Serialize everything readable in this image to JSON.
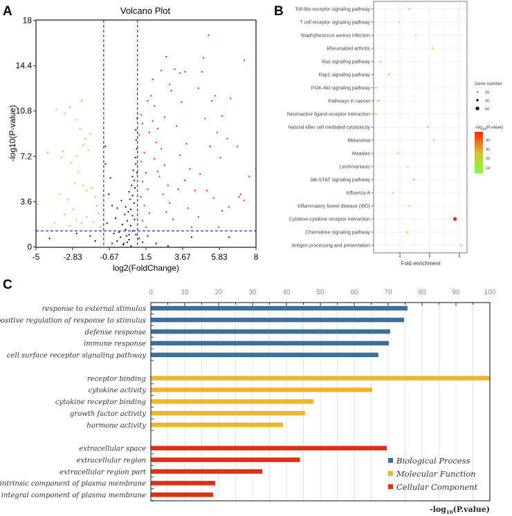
{
  "chart_data": [
    {
      "panel": "A",
      "type": "scatter",
      "title": "Volcano Plot",
      "xlabel": "log2(FoldChange)",
      "ylabel": "-log10(P-value)",
      "xlim": [
        -5,
        8
      ],
      "ylim": [
        0,
        18
      ],
      "xticks": [
        "-5",
        "-2.83",
        "-0.67",
        "1.5",
        "3.67",
        "5.83",
        "8"
      ],
      "yticks": [
        "0",
        "3.6",
        "7.2",
        "10.8",
        "14.4",
        "18"
      ],
      "thresholds": {
        "fc_low": -1,
        "fc_high": 1,
        "p": 1.3
      },
      "colors": {
        "up": "#e8262a",
        "down": "#7ee83a",
        "ns": "#111111",
        "threshold": "#1f2fff"
      },
      "series": [
        {
          "name": "up",
          "points": [
            [
              1.2,
              10.5
            ],
            [
              1.3,
              9.8
            ],
            [
              1.1,
              8.9
            ],
            [
              1.4,
              7.5
            ],
            [
              1.2,
              6.8
            ],
            [
              1.5,
              5.9
            ],
            [
              1.3,
              5.2
            ],
            [
              1.6,
              4.6
            ],
            [
              1.2,
              4.0
            ],
            [
              1.4,
              3.3
            ],
            [
              1.7,
              2.7
            ],
            [
              1.3,
              2.1
            ],
            [
              1.5,
              1.6
            ],
            [
              1.8,
              12.0
            ],
            [
              2.0,
              11.2
            ],
            [
              1.9,
              10.0
            ],
            [
              2.2,
              9.4
            ],
            [
              2.1,
              8.3
            ],
            [
              2.4,
              7.8
            ],
            [
              2.0,
              7.0
            ],
            [
              2.6,
              6.5
            ],
            [
              2.3,
              5.6
            ],
            [
              2.8,
              4.9
            ],
            [
              2.5,
              4.2
            ],
            [
              2.9,
              3.5
            ],
            [
              2.7,
              2.8
            ],
            [
              3.1,
              2.2
            ],
            [
              2.4,
              14.0
            ],
            [
              2.7,
              15.1
            ],
            [
              3.2,
              14.1
            ],
            [
              3.5,
              13.8
            ],
            [
              3.0,
              12.4
            ],
            [
              3.6,
              11.5
            ],
            [
              3.3,
              9.6
            ],
            [
              3.9,
              8.2
            ],
            [
              3.5,
              7.3
            ],
            [
              4.1,
              6.2
            ],
            [
              3.8,
              5.3
            ],
            [
              4.4,
              4.5
            ],
            [
              4.0,
              3.1
            ],
            [
              4.6,
              2.4
            ],
            [
              4.2,
              1.6
            ],
            [
              4.9,
              15.0
            ],
            [
              5.2,
              16.8
            ],
            [
              4.8,
              13.9
            ],
            [
              5.4,
              11.6
            ],
            [
              5.0,
              10.2
            ],
            [
              5.7,
              9.1
            ],
            [
              5.3,
              8.0
            ],
            [
              5.9,
              7.1
            ],
            [
              5.5,
              3.9
            ],
            [
              6.0,
              2.9
            ],
            [
              6.4,
              3.2
            ],
            [
              5.8,
              1.6
            ],
            [
              6.3,
              8.6
            ],
            [
              6.9,
              8.0
            ],
            [
              7.1,
              4.2
            ],
            [
              7.3,
              3.7
            ],
            [
              7.0,
              4.0
            ],
            [
              7.3,
              14.8
            ],
            [
              7.6,
              5.6
            ],
            [
              8.0,
              6.2
            ],
            [
              6.0,
              10.4
            ],
            [
              5.6,
              12.0
            ],
            [
              6.5,
              11.8
            ],
            [
              4.6,
              12.6
            ],
            [
              3.8,
              13.9
            ],
            [
              2.9,
              12.9
            ],
            [
              1.9,
              13.3
            ],
            [
              2.2,
              6.0
            ],
            [
              1.6,
              11.6
            ],
            [
              1.7,
              9.1
            ],
            [
              2.6,
              10.3
            ],
            [
              3.4,
              4.6
            ],
            [
              4.7,
              5.8
            ],
            [
              5.1,
              4.5
            ]
          ]
        },
        {
          "name": "down",
          "points": [
            [
              -4.9,
              3.4
            ],
            [
              -4.3,
              7.5
            ],
            [
              -3.9,
              1.9
            ],
            [
              -3.8,
              10.9
            ],
            [
              -3.6,
              4.2
            ],
            [
              -3.4,
              7.6
            ],
            [
              -3.5,
              7.1
            ],
            [
              -3.3,
              10.6
            ],
            [
              -3.3,
              2.6
            ],
            [
              -3.1,
              3.8
            ],
            [
              -3.0,
              11.1
            ],
            [
              -2.9,
              6.7
            ],
            [
              -2.8,
              3.0
            ],
            [
              -2.6,
              10.1
            ],
            [
              -2.6,
              7.2
            ],
            [
              -2.5,
              6.0
            ],
            [
              -2.4,
              9.4
            ],
            [
              -2.3,
              11.6
            ],
            [
              -2.2,
              8.1
            ],
            [
              -2.1,
              8.6
            ],
            [
              -2.0,
              4.5
            ],
            [
              -1.9,
              7.7
            ],
            [
              -1.8,
              9.0
            ],
            [
              -2.6,
              2.2
            ],
            [
              -2.3,
              1.9
            ],
            [
              -2.0,
              2.4
            ],
            [
              -1.6,
              2.0
            ],
            [
              -1.5,
              4.0
            ],
            [
              -1.4,
              3.3
            ],
            [
              -1.3,
              2.7
            ],
            [
              -1.2,
              1.6
            ],
            [
              -2.7,
              5.1
            ],
            [
              -1.7,
              4.7
            ],
            [
              -3.0,
              1.7
            ],
            [
              -2.2,
              4.9
            ]
          ]
        },
        {
          "name": "not significant",
          "points": [
            [
              -0.9,
              8.0
            ],
            [
              -0.9,
              6.6
            ],
            [
              -0.6,
              5.5
            ],
            [
              -0.7,
              4.2
            ],
            [
              -0.5,
              3.3
            ],
            [
              -0.3,
              2.3
            ],
            [
              -0.8,
              1.9
            ],
            [
              -0.4,
              1.1
            ],
            [
              -0.2,
              0.5
            ],
            [
              0,
              0.8
            ],
            [
              0.2,
              0.3
            ],
            [
              0.3,
              1.4
            ],
            [
              0.4,
              2.1
            ],
            [
              0.5,
              0.6
            ],
            [
              0.6,
              3.0
            ],
            [
              0.7,
              4.1
            ],
            [
              0.8,
              5.3
            ],
            [
              0.9,
              6.6
            ],
            [
              0.95,
              7.8
            ],
            [
              0.9,
              9.3
            ],
            [
              0.98,
              10.2
            ],
            [
              0.7,
              2.5
            ],
            [
              0.8,
              3.5
            ],
            [
              0.6,
              1.7
            ],
            [
              0.5,
              1.0
            ],
            [
              0.4,
              0.4
            ],
            [
              0.1,
              1.8
            ],
            [
              -0.1,
              1.2
            ],
            [
              0.85,
              4.7
            ],
            [
              0.75,
              6.1
            ],
            [
              0.65,
              4.9
            ],
            [
              0.55,
              3.8
            ],
            [
              0.45,
              2.8
            ],
            [
              0.35,
              0.9
            ],
            [
              0.25,
              2.6
            ],
            [
              0.15,
              0.2
            ],
            [
              -0.5,
              0.3
            ],
            [
              1.1,
              0.7
            ],
            [
              1.3,
              0.4
            ],
            [
              1.6,
              0.9
            ],
            [
              2.1,
              0.3
            ],
            [
              2.8,
              0.1
            ],
            [
              4.2,
              0.8
            ],
            [
              6.4,
              0.8
            ],
            [
              -1.5,
              0.5
            ],
            [
              -2.6,
              1.1
            ],
            [
              -4.2,
              0.7
            ],
            [
              -0.2,
              3.1
            ],
            [
              0.05,
              3.7
            ],
            [
              0.92,
              8.5
            ],
            [
              0.88,
              7.1
            ],
            [
              0.7,
              5.6
            ],
            [
              0.3,
              3.2
            ],
            [
              0.5,
              4.4
            ],
            [
              0.96,
              5.9
            ],
            [
              0.82,
              2.2
            ],
            [
              0.62,
              0.1
            ],
            [
              0.72,
              1.3
            ],
            [
              0.9,
              1.0
            ],
            [
              -1.8,
              0.9
            ]
          ]
        }
      ]
    },
    {
      "panel": "B",
      "type": "scatter",
      "xlabel": "Fold enrichment",
      "xlim": [
        2.2,
        8.4
      ],
      "xticks": [
        "4",
        "6",
        "8"
      ],
      "categories": [
        "Toll-like receptor signaling pathway",
        "T cell receptor signaling pathway",
        "Staphylococcus aureus infection",
        "Rheumatoid arthritis",
        "Ras signaling pathway",
        "Rap1 signaling pathway",
        "PI3K-Akt signaling pathway",
        "Pathways in cancer",
        "Neuroactive ligand-receptor interaction",
        "Natural killer cell mediated cytotoxicity",
        "Melanoma",
        "Measles",
        "Leishmaniasis",
        "Jak-STAT signaling pathway",
        "Influenza A",
        "Inflammatory bowel disease (IBD)",
        "Cytokine-cytokine receptor interaction",
        "Chemokine signaling pathway",
        "Antigen processing and presentation"
      ],
      "fold_enrichment": [
        4.65,
        3.95,
        5.07,
        6.19,
        2.7,
        3.26,
        2.4,
        2.56,
        2.4,
        5.86,
        6.28,
        3.88,
        4.53,
        4.93,
        3.51,
        4.65,
        7.7,
        4.5,
        8.14
      ],
      "gene_number": [
        14,
        12,
        8,
        14,
        18,
        16,
        20,
        24,
        16,
        16,
        12,
        14,
        10,
        16,
        14,
        10,
        60,
        20,
        14
      ],
      "neg_log10_p": [
        6,
        5,
        4,
        6,
        6,
        6,
        8,
        8,
        6,
        7,
        5,
        5,
        4,
        6,
        5,
        4,
        46,
        7,
        6
      ],
      "size_legend": {
        "title": "Gene number",
        "values": [
          "20",
          "40",
          "60"
        ]
      },
      "color_legend": {
        "title_prefix": "-log",
        "title_sub": "10",
        "title_suffix": "(P.value)",
        "ticks": [
          "40",
          "30",
          "20",
          "10"
        ],
        "range": [
          3,
          48
        ],
        "low_color": "#80ff40",
        "high_color": "#ff1a1a"
      }
    },
    {
      "panel": "C",
      "type": "bar",
      "orientation": "horizontal",
      "xlabel_prefix": "-log",
      "xlabel_sub": "10",
      "xlabel_suffix": "(P.value)",
      "xlim": [
        0,
        100
      ],
      "xticks": [
        "0",
        "10",
        "20",
        "30",
        "40",
        "50",
        "60",
        "70",
        "80",
        "90",
        "100"
      ],
      "groups": [
        {
          "name": "Biological Process",
          "color": "#3d6f9e",
          "categories": [
            "response to external stimulus",
            "positive regulation of response to stimulus",
            "defense response",
            "immune response",
            "cell surface receptor signaling pathway"
          ],
          "values": [
            75.7,
            74.7,
            70.6,
            70.2,
            67.1
          ]
        },
        {
          "name": "Molecular Function",
          "color": "#efb52d",
          "categories": [
            "receptor binding",
            "cytokine activity",
            "cytokine receptor binding",
            "growth factor activity",
            "hormone activity"
          ],
          "values": [
            100,
            65.3,
            48.0,
            45.5,
            39.0
          ]
        },
        {
          "name": "Cellular Component",
          "color": "#de2f17",
          "categories": [
            "extracellular space",
            "extracellular region",
            "extracellular region part",
            "intrinsic component of plasma membrane",
            "integral component of plasma membrane"
          ],
          "values": [
            69.6,
            44.0,
            32.9,
            19.0,
            18.4
          ]
        }
      ]
    }
  ],
  "panel_labels": [
    "A",
    "B",
    "C"
  ]
}
